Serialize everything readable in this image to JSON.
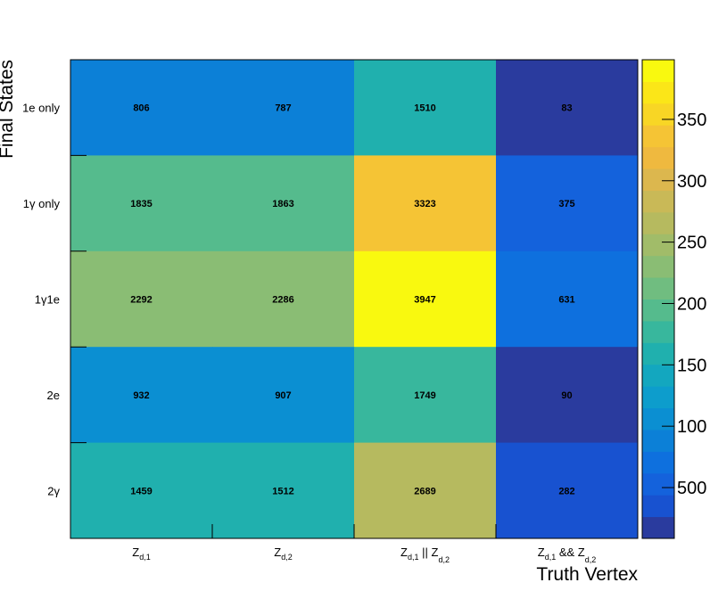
{
  "chart_data": {
    "type": "heatmap",
    "xlabel": "Truth Vertex",
    "ylabel": "Final States",
    "x_categories": [
      {
        "main": "Z",
        "sub": "d,1",
        "tail": "",
        "tail_sub": ""
      },
      {
        "main": "Z",
        "sub": "d,2",
        "tail": "",
        "tail_sub": ""
      },
      {
        "main": "Z",
        "sub": "d,1",
        "tail": " || Z",
        "tail_sub": "d,2"
      },
      {
        "main": "Z",
        "sub": "d,1",
        "tail": " && Z",
        "tail_sub": "d,2"
      }
    ],
    "y_categories": [
      "1e only",
      "1γ only",
      "1γ1e",
      "2e",
      "2γ"
    ],
    "values": [
      [
        806,
        787,
        1510,
        83
      ],
      [
        1835,
        1863,
        3323,
        375
      ],
      [
        2292,
        2286,
        3947,
        631
      ],
      [
        932,
        907,
        1749,
        90
      ],
      [
        1459,
        1512,
        2689,
        282
      ]
    ],
    "colorbar": {
      "ticks": [
        "500",
        "100",
        "150",
        "200",
        "250",
        "300",
        "350"
      ],
      "colors": [
        "#2a3b9e",
        "#1852d0",
        "#1462dc",
        "#0e70de",
        "#0c80d7",
        "#0b8fd2",
        "#0d9dcc",
        "#13a7bf",
        "#20b0ae",
        "#38b79d",
        "#55bb8d",
        "#70bd80",
        "#8abd74",
        "#a1bc69",
        "#b6ba5f",
        "#c9b957",
        "#dcb74e",
        "#efb93f",
        "#f5c435",
        "#f8d625",
        "#fbe618",
        "#f9f90f"
      ]
    }
  }
}
